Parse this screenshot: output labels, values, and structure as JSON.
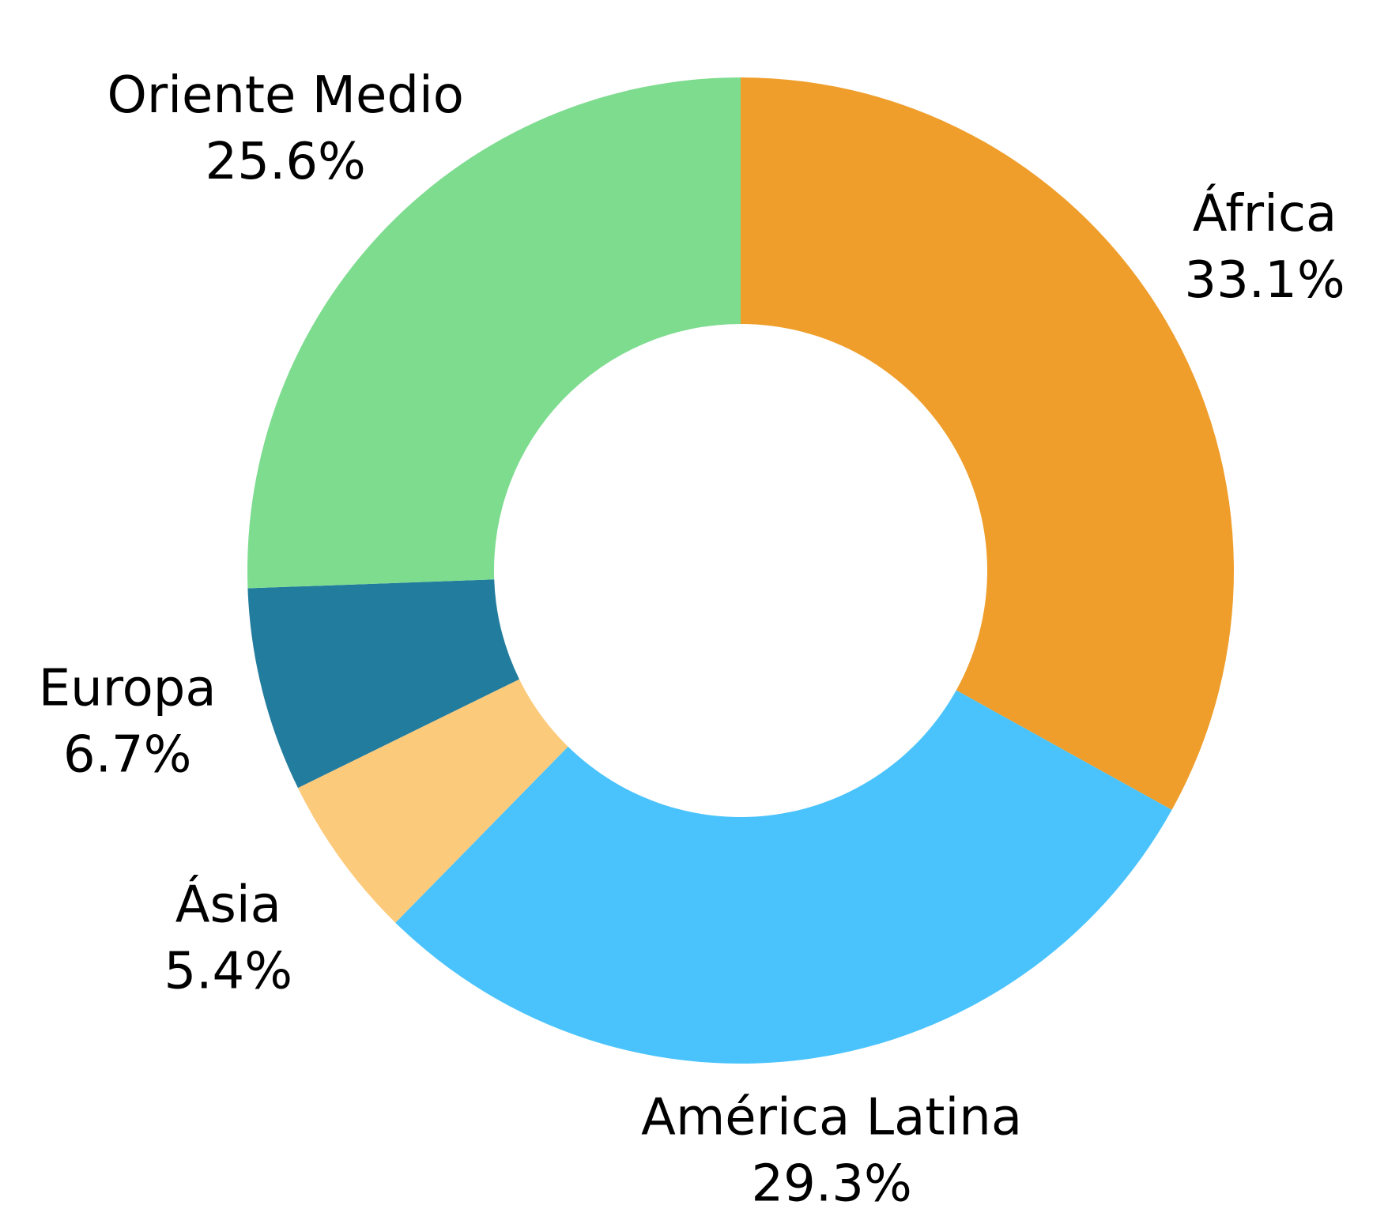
{
  "chart_data": {
    "type": "donut",
    "categories": [
      "África",
      "América Latina",
      "Ásia",
      "Europa",
      "Oriente Medio"
    ],
    "values": [
      33.1,
      29.3,
      5.4,
      6.7,
      25.6
    ],
    "value_labels": [
      "33.1%",
      "29.3%",
      "5.4%",
      "6.7%",
      "25.6%"
    ],
    "colors": [
      "#ef9e2b",
      "#4ac3fc",
      "#fcca7b",
      "#227c9e",
      "#7edc8f"
    ]
  }
}
